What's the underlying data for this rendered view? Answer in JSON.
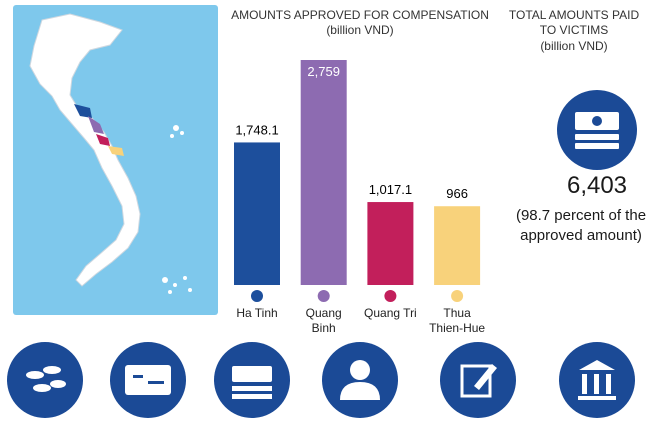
{
  "chart_data": {
    "type": "bar",
    "title": "AMOUNTS APPROVED FOR COMPENSATION",
    "subtitle": "(billion VND)",
    "categories": [
      "Ha Tinh",
      "Quang Binh",
      "Quang Tri",
      "Thua Thien-Hue"
    ],
    "values": [
      1748.1,
      2759,
      1017.1,
      966
    ],
    "value_labels": [
      "1,748.1",
      "2,759",
      "1,017.1",
      "966"
    ],
    "colors": [
      "#1d4f9c",
      "#8d6bb1",
      "#c21f5b",
      "#f8d27b"
    ]
  },
  "total": {
    "title": "TOTAL AMOUNTS  PAID TO VICTIMS",
    "unit": "(billion VND)",
    "value": "6,403",
    "note": "(98.7 percent of the approved amount)"
  }
}
